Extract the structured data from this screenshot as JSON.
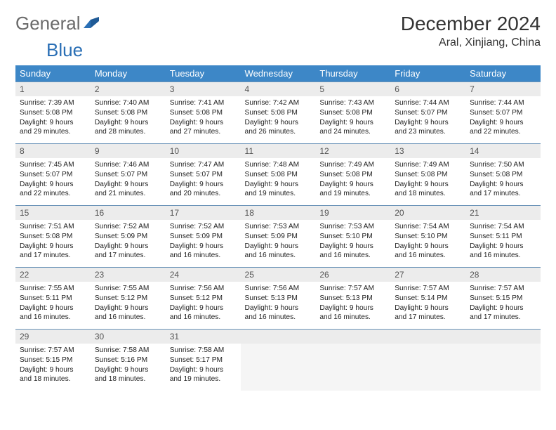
{
  "logo": {
    "part1": "General",
    "part2": "Blue"
  },
  "header": {
    "month": "December 2024",
    "location": "Aral, Xinjiang, China"
  },
  "colors": {
    "header_bg": "#3d87c7",
    "header_text": "#ffffff",
    "daynum_bg": "#ececec",
    "border_top": "#6a93b8",
    "logo_gray": "#6a6a6a",
    "logo_blue": "#2a6fb5"
  },
  "weekdays": [
    "Sunday",
    "Monday",
    "Tuesday",
    "Wednesday",
    "Thursday",
    "Friday",
    "Saturday"
  ],
  "weeks": [
    [
      {
        "n": "1",
        "sr": "Sunrise: 7:39 AM",
        "ss": "Sunset: 5:08 PM",
        "d1": "Daylight: 9 hours",
        "d2": "and 29 minutes."
      },
      {
        "n": "2",
        "sr": "Sunrise: 7:40 AM",
        "ss": "Sunset: 5:08 PM",
        "d1": "Daylight: 9 hours",
        "d2": "and 28 minutes."
      },
      {
        "n": "3",
        "sr": "Sunrise: 7:41 AM",
        "ss": "Sunset: 5:08 PM",
        "d1": "Daylight: 9 hours",
        "d2": "and 27 minutes."
      },
      {
        "n": "4",
        "sr": "Sunrise: 7:42 AM",
        "ss": "Sunset: 5:08 PM",
        "d1": "Daylight: 9 hours",
        "d2": "and 26 minutes."
      },
      {
        "n": "5",
        "sr": "Sunrise: 7:43 AM",
        "ss": "Sunset: 5:08 PM",
        "d1": "Daylight: 9 hours",
        "d2": "and 24 minutes."
      },
      {
        "n": "6",
        "sr": "Sunrise: 7:44 AM",
        "ss": "Sunset: 5:07 PM",
        "d1": "Daylight: 9 hours",
        "d2": "and 23 minutes."
      },
      {
        "n": "7",
        "sr": "Sunrise: 7:44 AM",
        "ss": "Sunset: 5:07 PM",
        "d1": "Daylight: 9 hours",
        "d2": "and 22 minutes."
      }
    ],
    [
      {
        "n": "8",
        "sr": "Sunrise: 7:45 AM",
        "ss": "Sunset: 5:07 PM",
        "d1": "Daylight: 9 hours",
        "d2": "and 22 minutes."
      },
      {
        "n": "9",
        "sr": "Sunrise: 7:46 AM",
        "ss": "Sunset: 5:07 PM",
        "d1": "Daylight: 9 hours",
        "d2": "and 21 minutes."
      },
      {
        "n": "10",
        "sr": "Sunrise: 7:47 AM",
        "ss": "Sunset: 5:07 PM",
        "d1": "Daylight: 9 hours",
        "d2": "and 20 minutes."
      },
      {
        "n": "11",
        "sr": "Sunrise: 7:48 AM",
        "ss": "Sunset: 5:08 PM",
        "d1": "Daylight: 9 hours",
        "d2": "and 19 minutes."
      },
      {
        "n": "12",
        "sr": "Sunrise: 7:49 AM",
        "ss": "Sunset: 5:08 PM",
        "d1": "Daylight: 9 hours",
        "d2": "and 19 minutes."
      },
      {
        "n": "13",
        "sr": "Sunrise: 7:49 AM",
        "ss": "Sunset: 5:08 PM",
        "d1": "Daylight: 9 hours",
        "d2": "and 18 minutes."
      },
      {
        "n": "14",
        "sr": "Sunrise: 7:50 AM",
        "ss": "Sunset: 5:08 PM",
        "d1": "Daylight: 9 hours",
        "d2": "and 17 minutes."
      }
    ],
    [
      {
        "n": "15",
        "sr": "Sunrise: 7:51 AM",
        "ss": "Sunset: 5:08 PM",
        "d1": "Daylight: 9 hours",
        "d2": "and 17 minutes."
      },
      {
        "n": "16",
        "sr": "Sunrise: 7:52 AM",
        "ss": "Sunset: 5:09 PM",
        "d1": "Daylight: 9 hours",
        "d2": "and 17 minutes."
      },
      {
        "n": "17",
        "sr": "Sunrise: 7:52 AM",
        "ss": "Sunset: 5:09 PM",
        "d1": "Daylight: 9 hours",
        "d2": "and 16 minutes."
      },
      {
        "n": "18",
        "sr": "Sunrise: 7:53 AM",
        "ss": "Sunset: 5:09 PM",
        "d1": "Daylight: 9 hours",
        "d2": "and 16 minutes."
      },
      {
        "n": "19",
        "sr": "Sunrise: 7:53 AM",
        "ss": "Sunset: 5:10 PM",
        "d1": "Daylight: 9 hours",
        "d2": "and 16 minutes."
      },
      {
        "n": "20",
        "sr": "Sunrise: 7:54 AM",
        "ss": "Sunset: 5:10 PM",
        "d1": "Daylight: 9 hours",
        "d2": "and 16 minutes."
      },
      {
        "n": "21",
        "sr": "Sunrise: 7:54 AM",
        "ss": "Sunset: 5:11 PM",
        "d1": "Daylight: 9 hours",
        "d2": "and 16 minutes."
      }
    ],
    [
      {
        "n": "22",
        "sr": "Sunrise: 7:55 AM",
        "ss": "Sunset: 5:11 PM",
        "d1": "Daylight: 9 hours",
        "d2": "and 16 minutes."
      },
      {
        "n": "23",
        "sr": "Sunrise: 7:55 AM",
        "ss": "Sunset: 5:12 PM",
        "d1": "Daylight: 9 hours",
        "d2": "and 16 minutes."
      },
      {
        "n": "24",
        "sr": "Sunrise: 7:56 AM",
        "ss": "Sunset: 5:12 PM",
        "d1": "Daylight: 9 hours",
        "d2": "and 16 minutes."
      },
      {
        "n": "25",
        "sr": "Sunrise: 7:56 AM",
        "ss": "Sunset: 5:13 PM",
        "d1": "Daylight: 9 hours",
        "d2": "and 16 minutes."
      },
      {
        "n": "26",
        "sr": "Sunrise: 7:57 AM",
        "ss": "Sunset: 5:13 PM",
        "d1": "Daylight: 9 hours",
        "d2": "and 16 minutes."
      },
      {
        "n": "27",
        "sr": "Sunrise: 7:57 AM",
        "ss": "Sunset: 5:14 PM",
        "d1": "Daylight: 9 hours",
        "d2": "and 17 minutes."
      },
      {
        "n": "28",
        "sr": "Sunrise: 7:57 AM",
        "ss": "Sunset: 5:15 PM",
        "d1": "Daylight: 9 hours",
        "d2": "and 17 minutes."
      }
    ],
    [
      {
        "n": "29",
        "sr": "Sunrise: 7:57 AM",
        "ss": "Sunset: 5:15 PM",
        "d1": "Daylight: 9 hours",
        "d2": "and 18 minutes."
      },
      {
        "n": "30",
        "sr": "Sunrise: 7:58 AM",
        "ss": "Sunset: 5:16 PM",
        "d1": "Daylight: 9 hours",
        "d2": "and 18 minutes."
      },
      {
        "n": "31",
        "sr": "Sunrise: 7:58 AM",
        "ss": "Sunset: 5:17 PM",
        "d1": "Daylight: 9 hours",
        "d2": "and 19 minutes."
      },
      null,
      null,
      null,
      null
    ]
  ]
}
